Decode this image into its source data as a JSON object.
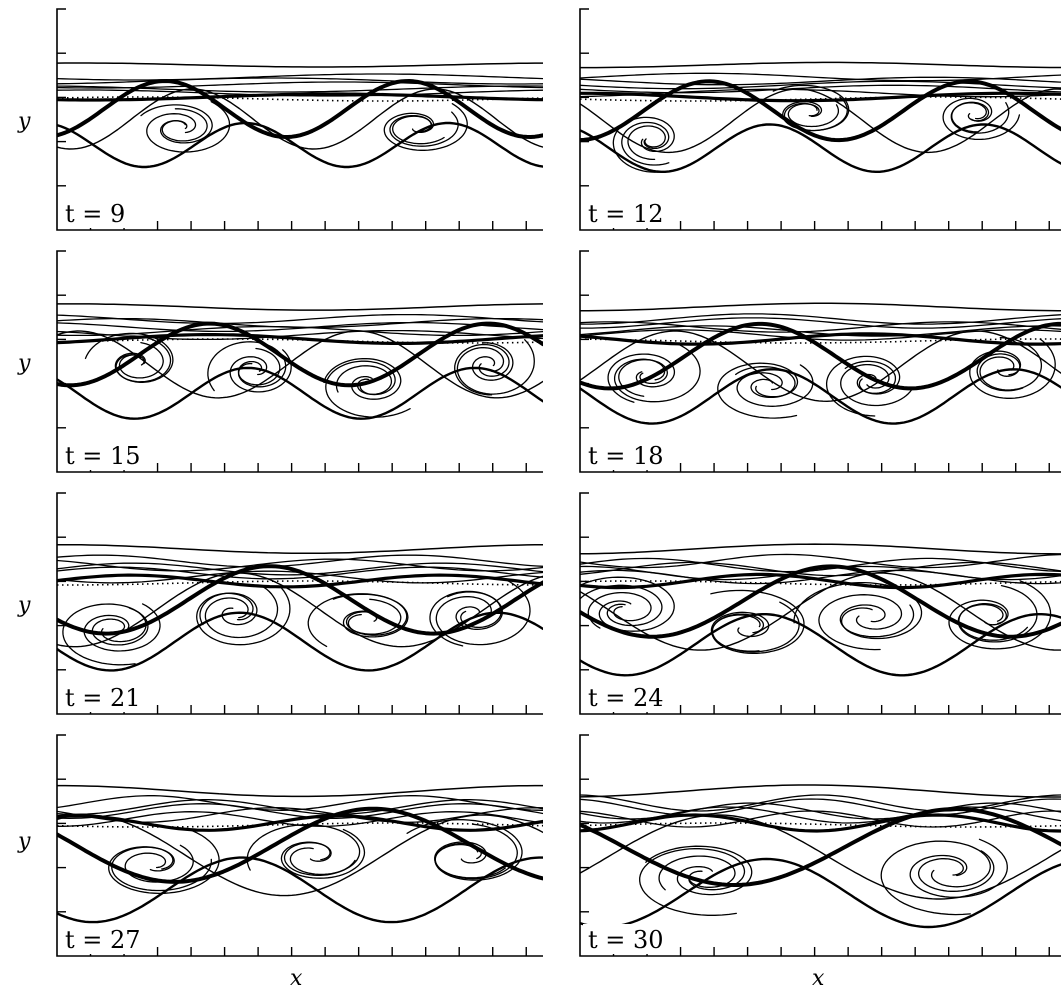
{
  "chart_data": {
    "type": "contour",
    "xlabel": "x",
    "ylabel": "y",
    "panels": [
      {
        "label": "t = 9",
        "t": 9
      },
      {
        "label": "t = 12",
        "t": 12
      },
      {
        "label": "t = 15",
        "t": 15
      },
      {
        "label": "t = 18",
        "t": 18
      },
      {
        "label": "t = 21",
        "t": 21
      },
      {
        "label": "t = 24",
        "t": 24
      },
      {
        "label": "t = 27",
        "t": 27
      },
      {
        "label": "t = 30",
        "t": 30
      }
    ],
    "grid": false,
    "legend": "none"
  }
}
